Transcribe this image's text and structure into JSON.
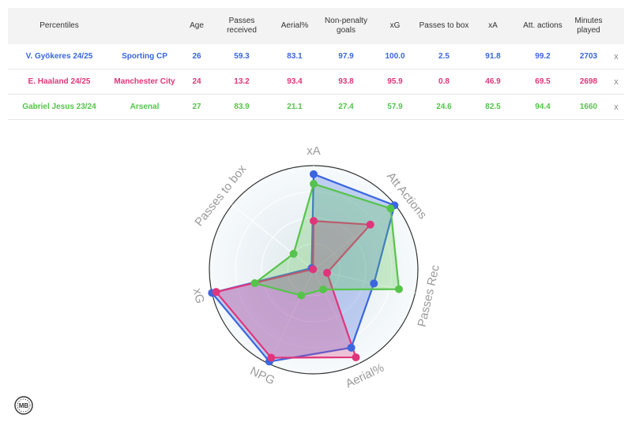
{
  "table": {
    "headers": [
      "Percentiles",
      "Age",
      "Passes received",
      "Aerial%",
      "Non-penalty goals",
      "xG",
      "Passes to box",
      "xA",
      "Att. actions",
      "Minutes played"
    ],
    "remove_symbol": "x",
    "rows": [
      {
        "player": "V. Gyökeres 24/25",
        "team": "Sporting CP",
        "age": "26",
        "passes_received": "59.3",
        "aerial": "83.1",
        "npg": "97.9",
        "xg": "100.0",
        "passes_to_box": "2.5",
        "xa": "91.8",
        "att_actions": "99.2",
        "minutes": "2703",
        "color": "#3a66e0"
      },
      {
        "player": "E. Haaland 24/25",
        "team": "Manchester City",
        "age": "24",
        "passes_received": "13.2",
        "aerial": "93.4",
        "npg": "93.8",
        "xg": "95.9",
        "passes_to_box": "0.8",
        "xa": "46.9",
        "att_actions": "69.5",
        "minutes": "2698",
        "color": "#e0357a"
      },
      {
        "player": "Gabriel Jesus 23/24",
        "team": "Arsenal",
        "age": "27",
        "passes_received": "83.9",
        "aerial": "21.1",
        "npg": "27.4",
        "xg": "57.9",
        "passes_to_box": "24.6",
        "xa": "82.5",
        "att_actions": "94.4",
        "minutes": "1660",
        "color": "#55c44a"
      }
    ]
  },
  "chart_data": {
    "type": "radar",
    "axes": [
      "xA",
      "Att Actions",
      "Passes Rec",
      "Aerial%",
      "NPG",
      "xG",
      "Passes to box"
    ],
    "range": [
      0,
      100
    ],
    "series": [
      {
        "name": "V. Gyökeres 24/25",
        "values": [
          91.8,
          99.2,
          59.3,
          83.1,
          97.9,
          100.0,
          2.5
        ],
        "color": "#3a66e0"
      },
      {
        "name": "E. Haaland 24/25",
        "values": [
          46.9,
          69.5,
          13.2,
          93.4,
          93.8,
          95.9,
          0.8
        ],
        "color": "#e0357a"
      },
      {
        "name": "Gabriel Jesus 23/24",
        "values": [
          82.5,
          94.4,
          83.9,
          21.1,
          27.4,
          57.9,
          24.6
        ],
        "color": "#55c44a"
      }
    ]
  },
  "logo": {
    "text": "MB"
  }
}
